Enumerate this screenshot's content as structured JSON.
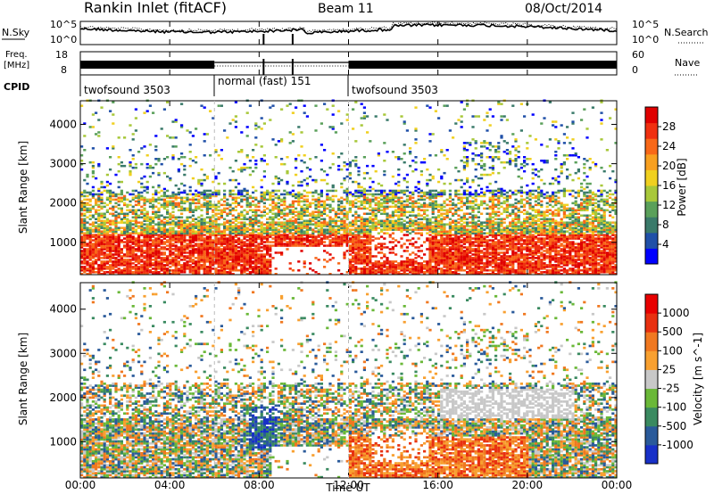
{
  "header": {
    "title": "Rankin Inlet (fitACF)",
    "beam": "Beam 11",
    "date": "08/Oct/2014"
  },
  "noise_panel": {
    "left_label": "N.Sky",
    "right_label": "N.Search",
    "left_ticks": [
      "10^5",
      "10^0"
    ],
    "right_ticks": [
      "10^5",
      "10^0"
    ]
  },
  "freq_panel": {
    "left_label_1": "Freq.",
    "left_label_2": "[MHz]",
    "left_ticks": [
      "18",
      "8"
    ],
    "right_label": "Nave",
    "right_ticks": [
      "60",
      "0"
    ]
  },
  "cpid": {
    "label": "CPID",
    "segments": [
      {
        "name": "twofsound 3503",
        "start": 0,
        "end": 6
      },
      {
        "name": "normal (fast) 151",
        "start": 6,
        "end": 12
      },
      {
        "name": "twofsound 3503",
        "start": 12,
        "end": 24
      }
    ]
  },
  "x_axis": {
    "label": "Time UT",
    "tick_labels": [
      "00:00",
      "04:00",
      "08:00",
      "12:00",
      "16:00",
      "20:00",
      "00:00"
    ]
  },
  "chart_data": [
    {
      "type": "heatmap",
      "title": "",
      "xlabel": "Time UT",
      "ylabel": "Slant Range [km]",
      "xlim": [
        0,
        24
      ],
      "ylim": [
        180,
        4600
      ],
      "y_ticks": [
        1000,
        2000,
        3000,
        4000
      ],
      "colorbar": {
        "label": "Power [dB]",
        "range": [
          0,
          32
        ],
        "ticks": [
          "28",
          "24",
          "20",
          "16",
          "12",
          "8",
          "4"
        ],
        "colors": [
          "#0000ff",
          "#2050a8",
          "#3a7a6a",
          "#5aa05a",
          "#a8c83a",
          "#f0d020",
          "#f8a020",
          "#f86818",
          "#f03010",
          "#e00000"
        ]
      }
    },
    {
      "type": "heatmap",
      "title": "",
      "xlabel": "Time UT",
      "ylabel": "Slant Range [km]",
      "xlim": [
        0,
        24
      ],
      "ylim": [
        180,
        4600
      ],
      "y_ticks": [
        1000,
        2000,
        3000,
        4000
      ],
      "colorbar": {
        "label": "Velocity [m s^-1]",
        "ticks": [
          "1000",
          "500",
          "100",
          "25",
          "-25",
          "-100",
          "-500",
          "-1000"
        ],
        "colors": [
          "#1830c8",
          "#2a5a9a",
          "#3a8a60",
          "#6ab838",
          "#c8c8c8",
          "#f8a030",
          "#f07820",
          "#e83010",
          "#e80000"
        ]
      }
    }
  ]
}
